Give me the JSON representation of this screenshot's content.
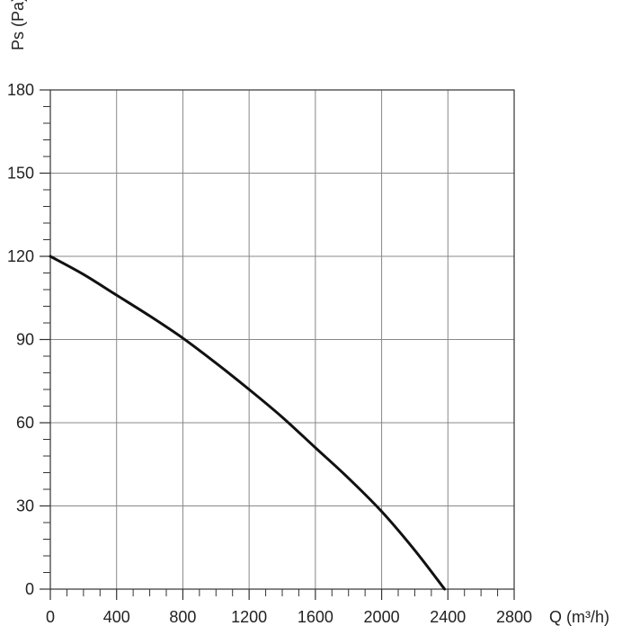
{
  "chart_data": {
    "type": "line",
    "title": "",
    "xlabel": "Q (m³/h)",
    "ylabel": "Ps (Pa)",
    "xlim": [
      0,
      2800
    ],
    "ylim": [
      0,
      180
    ],
    "x_ticks": [
      0,
      400,
      800,
      1200,
      1600,
      2000,
      2400,
      2800
    ],
    "y_ticks": [
      0,
      30,
      60,
      90,
      120,
      150,
      180
    ],
    "x_tick_labels": [
      "0",
      "400",
      "800",
      "1200",
      "1600",
      "2000",
      "2400",
      "2800"
    ],
    "y_tick_labels": [
      "0",
      "30",
      "60",
      "90",
      "120",
      "150",
      "180"
    ],
    "grid": true,
    "series": [
      {
        "x": [
          0,
          200,
          400,
          600,
          800,
          1000,
          1200,
          1400,
          1600,
          1800,
          2000,
          2200,
          2380
        ],
        "y": [
          120,
          113.5,
          106,
          98.5,
          90.5,
          81.5,
          72,
          62,
          51,
          40,
          28,
          14,
          0
        ]
      }
    ],
    "colors": {
      "line": "#111111",
      "grid": "#888888",
      "axis": "#333333"
    }
  }
}
